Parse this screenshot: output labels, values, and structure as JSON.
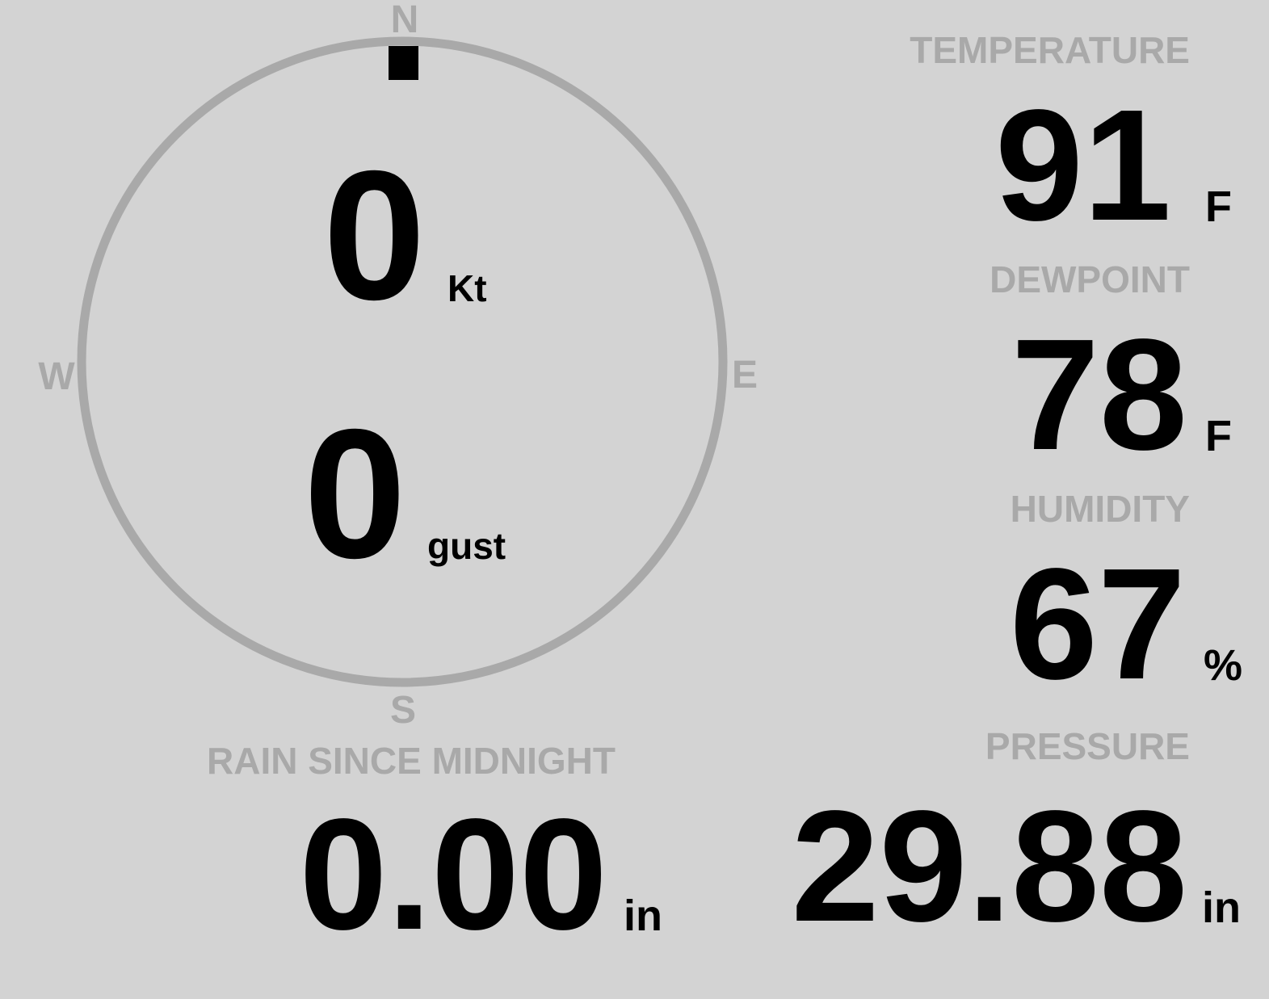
{
  "colors": {
    "background": "#d3d3d3",
    "label": "#a9a9a9",
    "value": "#000000"
  },
  "wind": {
    "direction_deg": 0,
    "speed": "0",
    "speed_unit": "Kt",
    "gust": "0",
    "gust_unit": "gust",
    "cardinals": {
      "n": "N",
      "e": "E",
      "s": "S",
      "w": "W"
    }
  },
  "temperature": {
    "label": "TEMPERATURE",
    "value": "91",
    "unit": "F"
  },
  "dewpoint": {
    "label": "DEWPOINT",
    "value": "78",
    "unit": "F"
  },
  "humidity": {
    "label": "HUMIDITY",
    "value": "67",
    "unit": "%"
  },
  "rain": {
    "label": "RAIN SINCE MIDNIGHT",
    "value": "0.00",
    "unit": "in"
  },
  "pressure": {
    "label": "PRESSURE",
    "value": "29.88",
    "unit": "in"
  }
}
